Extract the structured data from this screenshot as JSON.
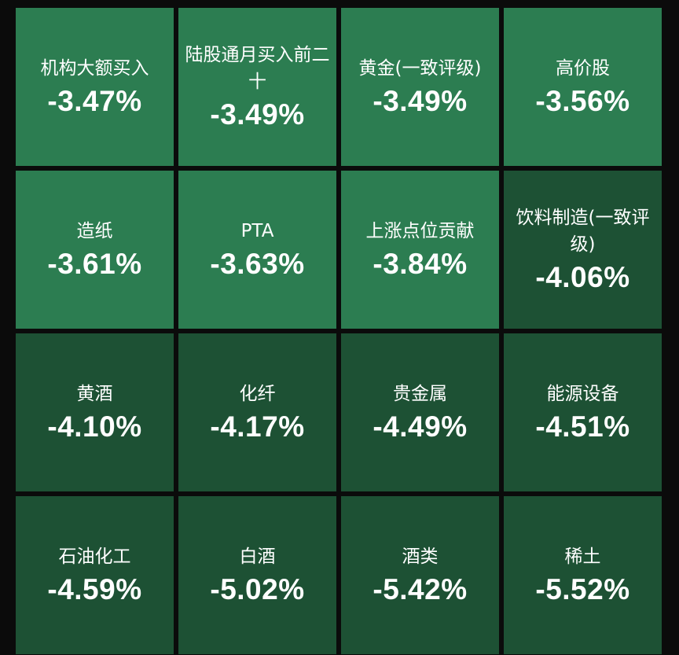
{
  "tiles": [
    {
      "name": "机构大额买入",
      "pct": "-3.47%",
      "shade": "light"
    },
    {
      "name": "陆股通月买入前二十",
      "pct": "-3.49%",
      "shade": "light"
    },
    {
      "name": "黄金(一致评级)",
      "pct": "-3.49%",
      "shade": "light"
    },
    {
      "name": "高价股",
      "pct": "-3.56%",
      "shade": "light"
    },
    {
      "name": "造纸",
      "pct": "-3.61%",
      "shade": "light"
    },
    {
      "name": "PTA",
      "pct": "-3.63%",
      "shade": "light"
    },
    {
      "name": "上涨点位贡献",
      "pct": "-3.84%",
      "shade": "light"
    },
    {
      "name": "饮料制造(一致评级)",
      "pct": "-4.06%",
      "shade": "dark"
    },
    {
      "name": "黄酒",
      "pct": "-4.10%",
      "shade": "dark"
    },
    {
      "name": "化纤",
      "pct": "-4.17%",
      "shade": "dark"
    },
    {
      "name": "贵金属",
      "pct": "-4.49%",
      "shade": "dark"
    },
    {
      "name": "能源设备",
      "pct": "-4.51%",
      "shade": "dark"
    },
    {
      "name": "石油化工",
      "pct": "-4.59%",
      "shade": "dark"
    },
    {
      "name": "白酒",
      "pct": "-5.02%",
      "shade": "dark"
    },
    {
      "name": "酒类",
      "pct": "-5.42%",
      "shade": "dark"
    },
    {
      "name": "稀土",
      "pct": "-5.52%",
      "shade": "dark"
    }
  ],
  "colors": {
    "light_tile": "#2c7d51",
    "dark_tile": "#1d5134",
    "background": "#0b0b0b",
    "text": "#ffffff"
  }
}
